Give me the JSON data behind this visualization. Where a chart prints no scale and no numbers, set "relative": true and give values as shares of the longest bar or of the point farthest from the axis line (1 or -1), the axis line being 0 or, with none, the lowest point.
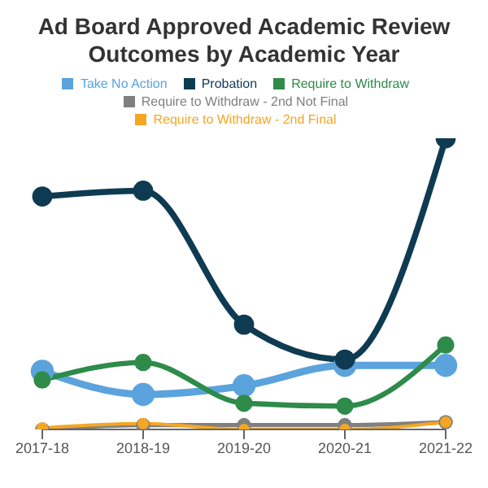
{
  "chart_data": {
    "type": "line",
    "title": "Ad Board Approved Academic Review Outcomes by Academic Year",
    "categories": [
      "2017-18",
      "2018-19",
      "2019-20",
      "2020-21",
      "2021-22"
    ],
    "relative": true,
    "legend": "top",
    "marker": "circle",
    "series": [
      {
        "name": "Take No Action",
        "color": "#5ba3dc",
        "values": [
          0.2,
          0.12,
          0.15,
          0.22,
          0.22
        ]
      },
      {
        "name": "Probation",
        "color": "#0e3b52",
        "values": [
          0.8,
          0.82,
          0.36,
          0.24,
          1
        ]
      },
      {
        "name": "Require to Withdraw",
        "color": "#2e8b4a",
        "values": [
          0.17,
          0.23,
          0.09,
          0.08,
          0.29
        ]
      },
      {
        "name": "Require to Withdraw - 2nd Not Final",
        "color": "#808080",
        "values": [
          0,
          0.015,
          0.015,
          0.015,
          0.025
        ]
      },
      {
        "name": "Require to Withdraw - 2nd Final",
        "color": "#f5a623",
        "values": [
          0.005,
          0.02,
          0,
          0,
          0.025
        ]
      }
    ]
  }
}
